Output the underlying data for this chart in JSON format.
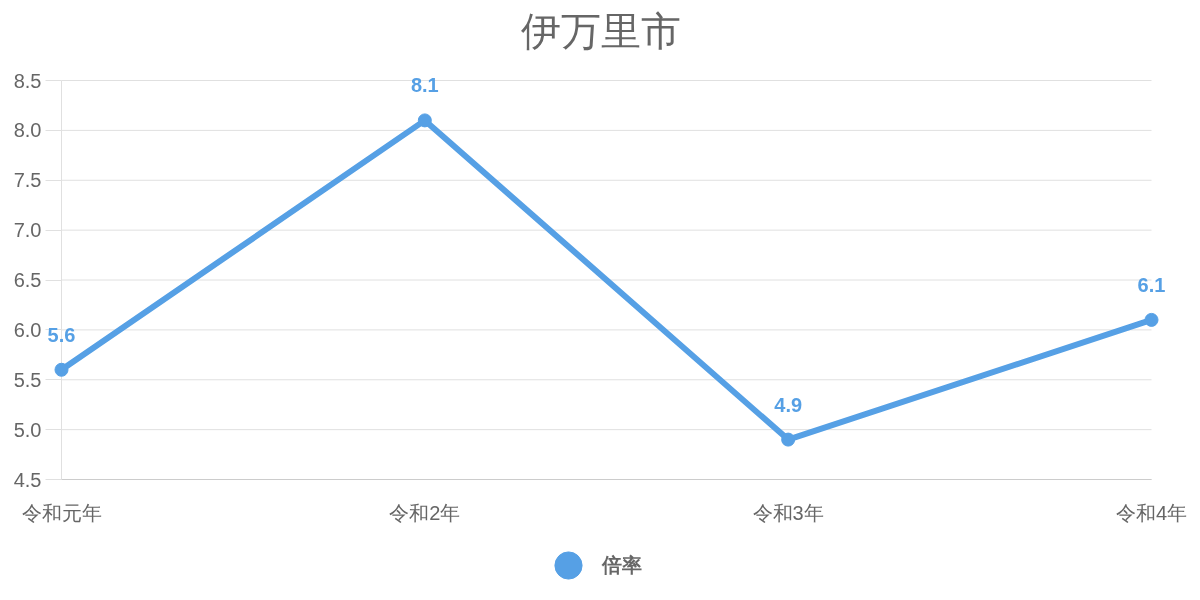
{
  "chart_data": {
    "type": "line",
    "title": "伊万里市",
    "categories": [
      "令和元年",
      "令和2年",
      "令和3年",
      "令和4年"
    ],
    "series": [
      {
        "name": "倍率",
        "color": "#56a0e5",
        "values": [
          5.6,
          8.1,
          4.9,
          6.1
        ]
      }
    ],
    "ylim": [
      4.5,
      8.5
    ],
    "yticks": [
      8.5,
      {
        "value": 8,
        "label": "8.0"
      },
      7.5,
      {
        "value": 7,
        "label": "7.0"
      },
      6.5,
      {
        "value": 6,
        "label": "6.0"
      },
      5.5,
      {
        "value": 5,
        "label": "5.0"
      },
      4.5
    ],
    "grid": "y",
    "legend": "bottom",
    "marker": "circle",
    "line_style": "solid",
    "data_labels": true
  }
}
